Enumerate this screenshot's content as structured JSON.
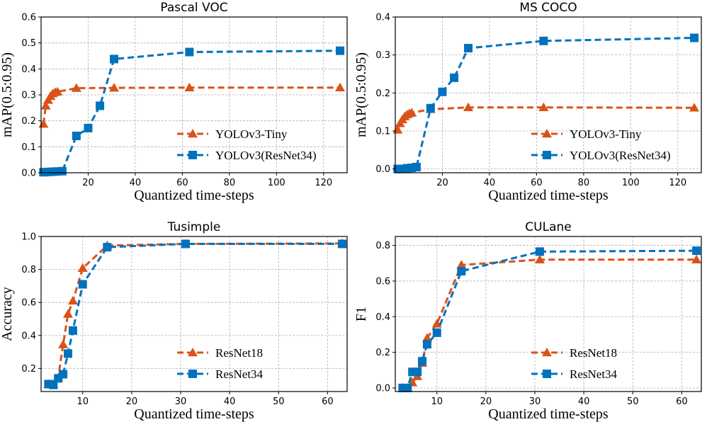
{
  "colors": {
    "orange": "#d95319",
    "blue": "#0072bd"
  },
  "chart_data": [
    {
      "type": "line",
      "title": "Pascal VOC",
      "xlabel": "Quantized time-steps",
      "ylabel": "mAP(0.5:0.95)",
      "xlim": [
        0,
        130
      ],
      "ylim": [
        0,
        0.6
      ],
      "xticks": [
        20,
        40,
        60,
        80,
        100,
        120
      ],
      "xtick_labels": [
        "20",
        "40",
        "60",
        "80",
        "100",
        "120"
      ],
      "yticks": [
        0,
        0.1,
        0.2,
        0.3,
        0.4,
        0.5,
        0.6
      ],
      "ytick_labels": [
        "0.0",
        "0.1",
        "0.2",
        "0.3",
        "0.4",
        "0.5",
        "0.6"
      ],
      "legend_position": "lower-right",
      "series": [
        {
          "name": "YOLOv3-Tiny",
          "color": "#d95319",
          "marker": "triangle",
          "x": [
            1,
            2,
            3,
            4,
            5,
            6,
            7,
            15,
            31,
            63,
            127
          ],
          "y": [
            0.188,
            0.258,
            0.28,
            0.295,
            0.305,
            0.31,
            0.312,
            0.326,
            0.327,
            0.328,
            0.328
          ]
        },
        {
          "name": "YOLOv3(ResNet34)",
          "color": "#0072bd",
          "marker": "square",
          "x": [
            1,
            3,
            5,
            7,
            9,
            15,
            20,
            25,
            31,
            63,
            127
          ],
          "y": [
            0.002,
            0.003,
            0.004,
            0.005,
            0.006,
            0.142,
            0.172,
            0.258,
            0.438,
            0.465,
            0.47
          ]
        }
      ]
    },
    {
      "type": "line",
      "title": "MS COCO",
      "xlabel": "Quantized time-steps",
      "ylabel": "mAP(0.5:0.95)",
      "xlim": [
        0,
        130
      ],
      "ylim": [
        -0.01,
        0.4
      ],
      "xticks": [
        20,
        40,
        60,
        80,
        100,
        120
      ],
      "xtick_labels": [
        "20",
        "40",
        "60",
        "80",
        "100",
        "120"
      ],
      "yticks": [
        0,
        0.1,
        0.2,
        0.3,
        0.4
      ],
      "ytick_labels": [
        "0.0",
        "0.1",
        "0.2",
        "0.3",
        "0.4"
      ],
      "legend_position": "lower-right",
      "series": [
        {
          "name": "YOLOv3-Tiny",
          "color": "#d95319",
          "marker": "triangle",
          "x": [
            1,
            2,
            3,
            4,
            5,
            6,
            7,
            15,
            31,
            63,
            127
          ],
          "y": [
            0.103,
            0.12,
            0.13,
            0.138,
            0.143,
            0.146,
            0.148,
            0.157,
            0.162,
            0.162,
            0.161
          ]
        },
        {
          "name": "YOLOv3(ResNet34)",
          "color": "#0072bd",
          "marker": "square",
          "x": [
            1,
            3,
            5,
            7,
            9,
            15,
            20,
            25,
            31,
            63,
            127
          ],
          "y": [
            0.0,
            0.0,
            0.002,
            0.003,
            0.005,
            0.16,
            0.203,
            0.24,
            0.318,
            0.337,
            0.345
          ]
        }
      ]
    },
    {
      "type": "line",
      "title": "Tusimple",
      "xlabel": "Quantized time-steps",
      "ylabel": "Accuracy",
      "xlim": [
        1.5,
        64
      ],
      "ylim": [
        0.06,
        1.0
      ],
      "xticks": [
        10,
        20,
        30,
        40,
        50,
        60
      ],
      "xtick_labels": [
        "10",
        "20",
        "30",
        "40",
        "50",
        "60"
      ],
      "yticks": [
        0.2,
        0.4,
        0.6,
        0.8,
        1.0
      ],
      "ytick_labels": [
        "0.2",
        "0.4",
        "0.6",
        "0.8",
        "1.0"
      ],
      "legend_position": "lower-right",
      "series": [
        {
          "name": "ResNet18",
          "color": "#d95319",
          "marker": "triangle",
          "x": [
            3,
            4,
            5,
            6,
            7,
            8,
            10,
            15,
            31,
            63
          ],
          "y": [
            0.105,
            0.105,
            0.145,
            0.345,
            0.53,
            0.61,
            0.808,
            0.945,
            0.955,
            0.958
          ]
        },
        {
          "name": "ResNet34",
          "color": "#0072bd",
          "marker": "square",
          "x": [
            3,
            4,
            5,
            6,
            7,
            8,
            10,
            15,
            31,
            63
          ],
          "y": [
            0.105,
            0.1,
            0.14,
            0.165,
            0.29,
            0.43,
            0.71,
            0.935,
            0.955,
            0.955
          ]
        }
      ]
    },
    {
      "type": "line",
      "title": "CULane",
      "xlabel": "Quantized time-steps",
      "ylabel": "F1",
      "xlim": [
        1.5,
        64
      ],
      "ylim": [
        -0.02,
        0.85
      ],
      "xticks": [
        10,
        20,
        30,
        40,
        50,
        60
      ],
      "xtick_labels": [
        "10",
        "20",
        "30",
        "40",
        "50",
        "60"
      ],
      "yticks": [
        0,
        0.2,
        0.4,
        0.6,
        0.8
      ],
      "ytick_labels": [
        "0.0",
        "0.2",
        "0.4",
        "0.6",
        "0.8"
      ],
      "legend_position": "lower-right",
      "series": [
        {
          "name": "ResNet18",
          "color": "#d95319",
          "marker": "triangle",
          "x": [
            3,
            4,
            5,
            6,
            7,
            8,
            10,
            15,
            31,
            63
          ],
          "y": [
            0.0,
            0.0,
            0.03,
            0.065,
            0.14,
            0.28,
            0.36,
            0.69,
            0.72,
            0.72
          ]
        },
        {
          "name": "ResNet34",
          "color": "#0072bd",
          "marker": "square",
          "x": [
            3,
            4,
            5,
            6,
            7,
            8,
            10,
            15,
            31,
            63
          ],
          "y": [
            0.0,
            0.0,
            0.09,
            0.09,
            0.15,
            0.245,
            0.31,
            0.655,
            0.765,
            0.77
          ]
        }
      ]
    }
  ]
}
